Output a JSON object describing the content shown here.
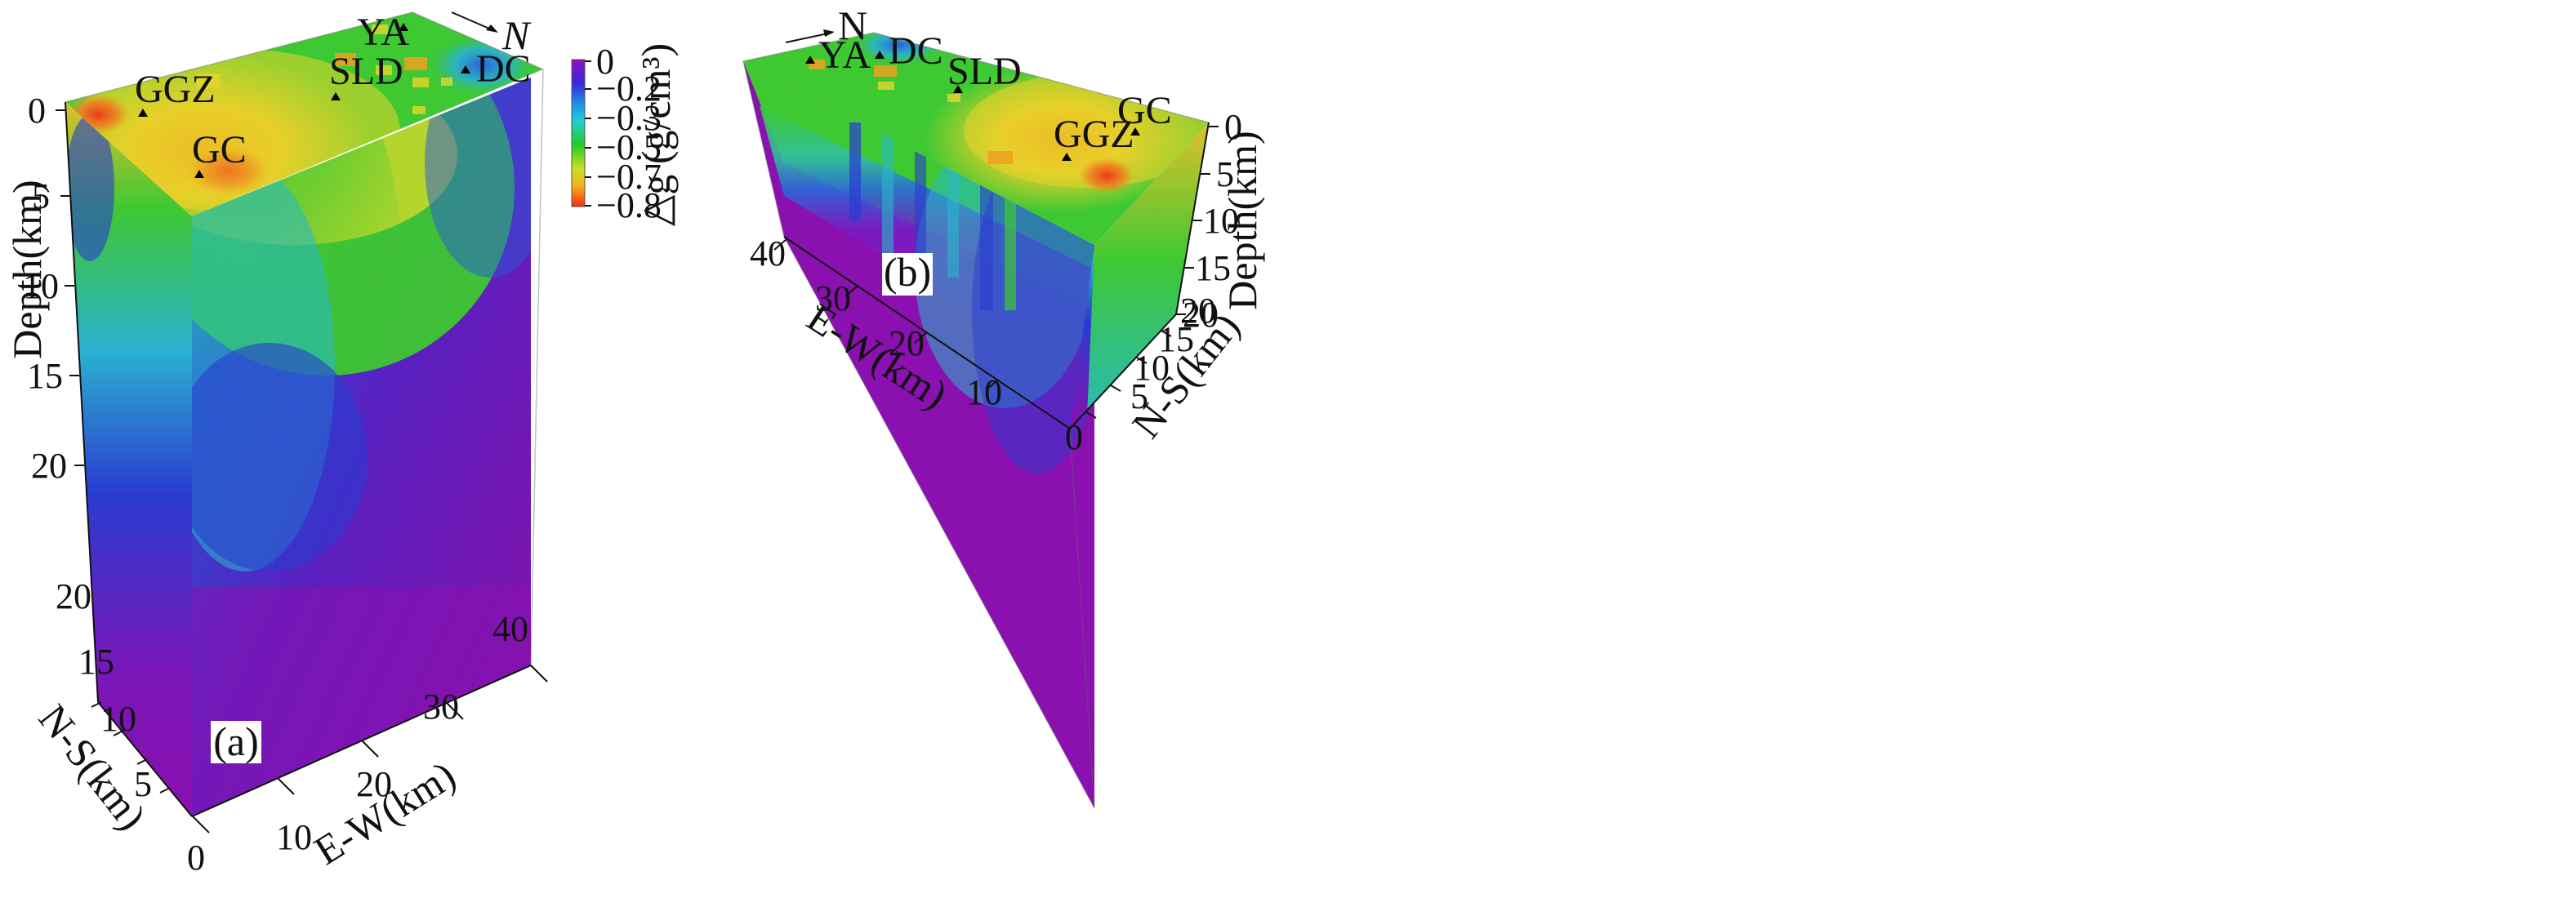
{
  "panels": [
    {
      "label": "(a)",
      "depth_axis": {
        "title": "Depth(km)",
        "ticks": [
          "0",
          "5",
          "10",
          "15",
          "20"
        ]
      },
      "ew_axis": {
        "title": "E-W(km)",
        "ticks": [
          "10",
          "20",
          "30",
          "40"
        ]
      },
      "ns_axis": {
        "title": "N-S(km)",
        "ticks": [
          "0",
          "5",
          "10",
          "15",
          "20"
        ]
      },
      "north_label": "N",
      "stations": [
        "GGZ",
        "GC",
        "SLD",
        "YA",
        "DC"
      ]
    },
    {
      "label": "(b)",
      "depth_axis": {
        "title": "Depth(km)",
        "ticks": [
          "0",
          "5",
          "10",
          "15",
          "20"
        ]
      },
      "ew_axis": {
        "title": "E-W(km)",
        "ticks": [
          "10",
          "20",
          "30",
          "40"
        ]
      },
      "ns_axis": {
        "title": "N-S(km)",
        "ticks": [
          "0",
          "5",
          "10",
          "15",
          "20"
        ]
      },
      "north_label": "N",
      "stations": [
        "YA",
        "DC",
        "SLD",
        "GGZ",
        "GC"
      ]
    }
  ],
  "colorbar": {
    "title": "△g (g/cm³)",
    "ticks": [
      "0",
      "−0.2",
      "−0.3",
      "−0.5",
      "−0.7",
      "−0.8"
    ],
    "colors": [
      "#9010c0",
      "#2030d8",
      "#20c8e8",
      "#22cc22",
      "#f0e020",
      "#ff3010"
    ]
  },
  "colors": {
    "purple": "#8a1ab8",
    "blue": "#2a3cd0",
    "green": "#3ec832",
    "yellow": "#e8d428",
    "orange": "#f08a20",
    "red": "#f03a18"
  }
}
